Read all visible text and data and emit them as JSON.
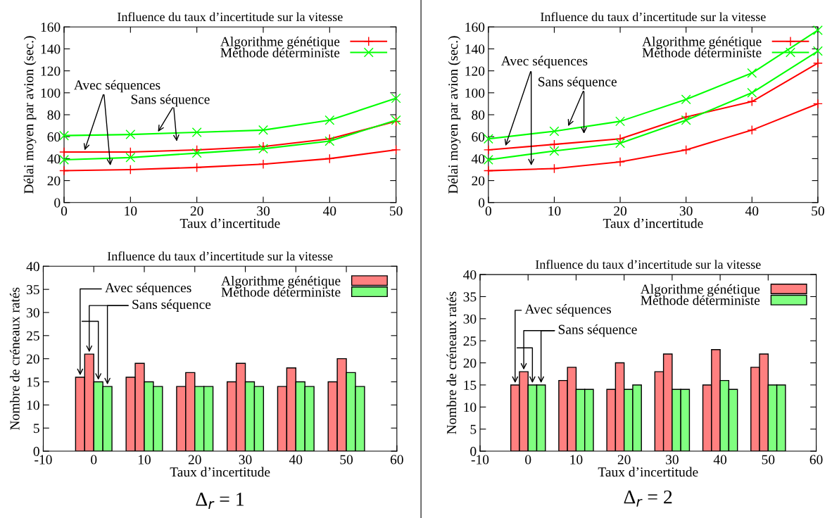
{
  "chart_data": [
    {
      "type": "line",
      "title": "Influence du taux d’incertitude sur la vitesse",
      "xlabel": "Taux d’incertitude",
      "ylabel": "Délai moyen par avion (sec.)",
      "x": [
        0,
        10,
        20,
        30,
        40,
        50
      ],
      "xlim": [
        0,
        50
      ],
      "xticks": [
        0,
        10,
        20,
        30,
        40,
        50
      ],
      "ylim": [
        0,
        160
      ],
      "yticks": [
        0,
        20,
        40,
        60,
        80,
        100,
        120,
        140,
        160
      ],
      "legend": "top right",
      "grid": false,
      "line_style": "solid",
      "series": [
        {
          "name": "Algorithme génétique",
          "color": "#ff0000",
          "marker": "plus",
          "values": [
            46,
            46,
            48,
            51,
            58,
            74
          ]
        },
        {
          "color": "#ff0000",
          "marker": "plus",
          "values": [
            29,
            30,
            32,
            35,
            40,
            48
          ]
        },
        {
          "name": "Méthode déterministe",
          "color": "#00ff00",
          "marker": "cross",
          "values": [
            61,
            62,
            64,
            66,
            75,
            95
          ]
        },
        {
          "color": "#00ff00",
          "marker": "cross",
          "values": [
            39,
            41,
            45,
            49,
            56,
            75
          ]
        }
      ],
      "annotations": [
        {
          "text": "Avec séquences",
          "x": 3,
          "y": 46
        },
        {
          "text": "Sans séquence",
          "x": 14,
          "y": 63
        }
      ]
    },
    {
      "type": "line",
      "title": "Influence du taux d’incertitude sur la vitesse",
      "xlabel": "Taux d’incertitude",
      "ylabel": "Délai moyen par avion (sec.)",
      "x": [
        0,
        10,
        20,
        30,
        40,
        50
      ],
      "xlim": [
        0,
        50
      ],
      "xticks": [
        0,
        10,
        20,
        30,
        40,
        50
      ],
      "ylim": [
        0,
        160
      ],
      "yticks": [
        0,
        20,
        40,
        60,
        80,
        100,
        120,
        140,
        160
      ],
      "legend": "top right",
      "grid": false,
      "line_style": "solid",
      "series": [
        {
          "name": "Algorithme génétique",
          "color": "#ff0000",
          "marker": "plus",
          "values": [
            48,
            53,
            58,
            78,
            92,
            127
          ]
        },
        {
          "color": "#ff0000",
          "marker": "plus",
          "values": [
            29,
            31,
            37,
            48,
            66,
            90
          ]
        },
        {
          "name": "Méthode déterministe",
          "color": "#00ff00",
          "marker": "cross",
          "values": [
            58,
            65,
            74,
            94,
            118,
            157
          ]
        },
        {
          "color": "#00ff00",
          "marker": "cross",
          "values": [
            39,
            47,
            54,
            75,
            100,
            138
          ]
        }
      ],
      "annotations": [
        {
          "text": "Avec séquences",
          "x": 2.5,
          "y": 50
        },
        {
          "text": "Sans séquence",
          "x": 12,
          "y": 68
        }
      ]
    },
    {
      "type": "bar",
      "title": "Influence du taux d’incertitude sur la vitesse",
      "xlabel": "Taux d’incertitude",
      "ylabel": "Nombre de créneaux ratés",
      "x": [
        0,
        10,
        20,
        30,
        40,
        50
      ],
      "xlim": [
        -10,
        60
      ],
      "xticks": [
        -10,
        0,
        10,
        20,
        30,
        40,
        50,
        60
      ],
      "ylim": [
        0,
        40
      ],
      "yticks": [
        0,
        5,
        10,
        15,
        20,
        25,
        30,
        35,
        40
      ],
      "legend": "top right",
      "grid": false,
      "series": [
        {
          "name": "Algorithme génétique",
          "color": "#ff8080",
          "values": [
            16,
            16,
            14,
            15,
            14,
            15
          ]
        },
        {
          "color": "#ff8080",
          "values": [
            21,
            19,
            17,
            19,
            18,
            20
          ]
        },
        {
          "name": "Méthode déterministe",
          "color": "#80ff80",
          "values": [
            15,
            15,
            14,
            15,
            15,
            17
          ]
        },
        {
          "color": "#80ff80",
          "values": [
            14,
            14,
            14,
            14,
            14,
            14
          ]
        }
      ],
      "annotations": [
        {
          "text": "Avec séquences",
          "x": -2.7,
          "y": 16
        },
        {
          "text": "Sans séquence",
          "x": -0.9,
          "y": 21
        },
        "Δ$_{r}$ = 1"
      ]
    },
    {
      "type": "bar",
      "title": "Influence du taux d’incertitude sur la vitesse",
      "xlabel": "Taux d’incertitude",
      "ylabel": "Nombre de créneaux ratés",
      "x": [
        0,
        10,
        20,
        30,
        40,
        50
      ],
      "xlim": [
        -10,
        60
      ],
      "xticks": [
        -10,
        0,
        10,
        20,
        30,
        40,
        50,
        60
      ],
      "ylim": [
        0,
        40
      ],
      "yticks": [
        0,
        5,
        10,
        15,
        20,
        25,
        30,
        35,
        40
      ],
      "legend": "top right",
      "grid": false,
      "series": [
        {
          "name": "Algorithme génétique",
          "color": "#ff8080",
          "values": [
            15,
            16,
            14,
            18,
            15,
            19
          ]
        },
        {
          "color": "#ff8080",
          "values": [
            18,
            19,
            20,
            22,
            23,
            22
          ]
        },
        {
          "name": "Méthode déterministe",
          "color": "#80ff80",
          "values": [
            15,
            14,
            14,
            14,
            16,
            15
          ]
        },
        {
          "color": "#80ff80",
          "values": [
            15,
            14,
            15,
            14,
            14,
            15
          ]
        }
      ],
      "annotations": [
        {
          "text": "Avec séquences",
          "x": -2.7,
          "y": 15
        },
        {
          "text": "Sans séquence",
          "x": -0.9,
          "y": 18
        },
        "Δ$_{r}$ = 2"
      ]
    }
  ]
}
